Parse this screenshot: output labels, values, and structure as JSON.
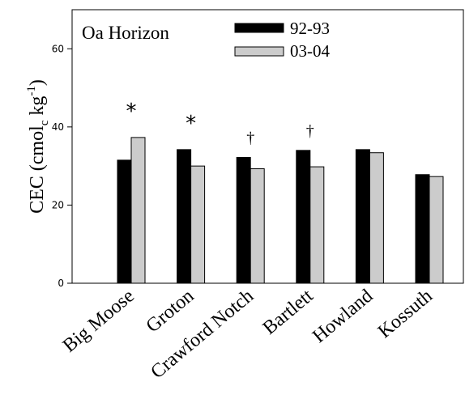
{
  "chart_data": {
    "type": "bar",
    "panel_label": "Oa Horizon",
    "ylabel_parts": [
      "CEC (cmol",
      "c",
      " kg",
      "-1",
      ")"
    ],
    "ylim": [
      0,
      70
    ],
    "yticks": [
      0,
      20,
      40,
      60
    ],
    "categories": [
      "Big Moose",
      "Groton",
      "Crawford Notch",
      "Bartlett",
      "Howland",
      "Kossuth"
    ],
    "series": [
      {
        "name": "92-93",
        "color": "#000000",
        "values": [
          31.5,
          34.2,
          32.2,
          34.0,
          34.2,
          27.8
        ]
      },
      {
        "name": "03-04",
        "color": "#cccccc",
        "values": [
          37.3,
          30.0,
          29.3,
          29.8,
          33.4,
          27.3
        ]
      }
    ],
    "annotations": [
      "*",
      "*",
      "†",
      "†",
      "",
      ""
    ],
    "legend_position": "top-center"
  }
}
